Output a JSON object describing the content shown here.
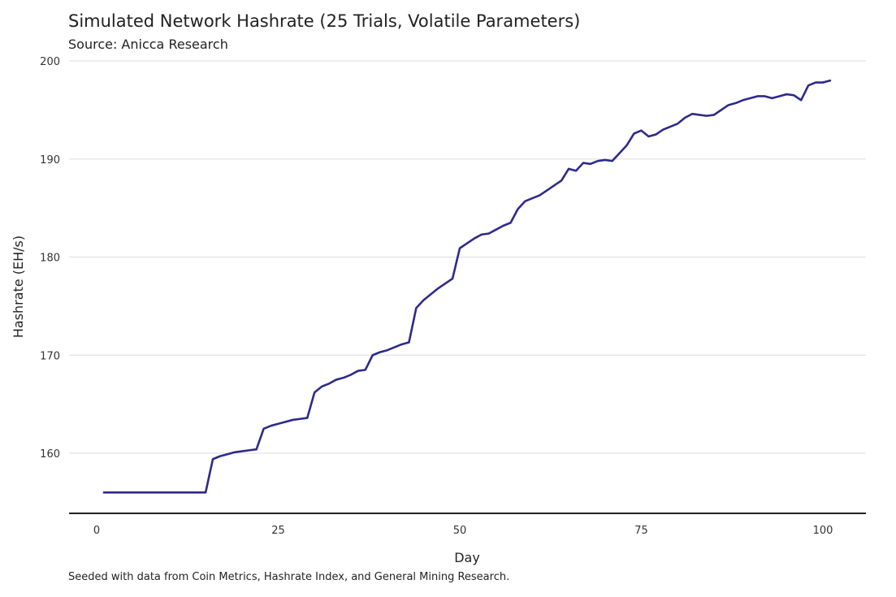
{
  "chart_data": {
    "type": "line",
    "title": "Simulated Network Hashrate (25 Trials, Volatile Parameters)",
    "subtitle": "Source: Anicca Research",
    "caption": "Seeded with data from Coin Metrics, Hashrate Index, and General Mining Research.",
    "xlabel": "Day",
    "ylabel": "Hashrate (EH/s)",
    "xlim": [
      1,
      101
    ],
    "ylim": [
      156,
      200
    ],
    "xticks": [
      0,
      25,
      50,
      75,
      100
    ],
    "yticks": [
      160,
      170,
      180,
      190,
      200
    ],
    "grid": "horizontal",
    "legend": "none",
    "line_color": "#2d2a8c",
    "series": [
      {
        "x": [
          1,
          5,
          10,
          15,
          16,
          17,
          18,
          19,
          20,
          21,
          22,
          23,
          24,
          25,
          26,
          27,
          28,
          29,
          30,
          31,
          32,
          33,
          34,
          35,
          36,
          37,
          38,
          39,
          40,
          41,
          42,
          43,
          44,
          45,
          46,
          47,
          48,
          49,
          50,
          51,
          52,
          53,
          54,
          55,
          56,
          57,
          58,
          59,
          60,
          61,
          62,
          63,
          64,
          65,
          66,
          67,
          68,
          69,
          70,
          71,
          72,
          73,
          74,
          75,
          76,
          77,
          78,
          79,
          80,
          81,
          82,
          83,
          84,
          85,
          86,
          87,
          88,
          89,
          90,
          91,
          92,
          93,
          94,
          95,
          96,
          97,
          98,
          99,
          100,
          101
        ],
        "y": [
          156.0,
          156.0,
          156.0,
          156.0,
          159.4,
          159.7,
          159.9,
          160.1,
          160.2,
          160.3,
          160.4,
          162.5,
          162.8,
          163.0,
          163.2,
          163.4,
          163.5,
          163.6,
          166.2,
          166.8,
          167.1,
          167.5,
          167.7,
          168.0,
          168.4,
          168.5,
          170.0,
          170.3,
          170.5,
          170.8,
          171.1,
          171.3,
          174.8,
          175.6,
          176.2,
          176.8,
          177.3,
          177.8,
          180.9,
          181.4,
          181.9,
          182.3,
          182.4,
          182.8,
          183.2,
          183.5,
          184.9,
          185.7,
          186.0,
          186.3,
          186.8,
          187.3,
          187.8,
          189.0,
          188.8,
          189.6,
          189.5,
          189.8,
          189.9,
          189.8,
          190.6,
          191.4,
          192.6,
          192.9,
          192.3,
          192.5,
          193.0,
          193.3,
          193.6,
          194.2,
          194.6,
          194.5,
          194.4,
          194.5,
          195.0,
          195.5,
          195.7,
          196.0,
          196.2,
          196.4,
          196.4,
          196.2,
          196.4,
          196.6,
          196.5,
          196.0,
          197.5,
          197.8,
          197.8,
          198.0
        ]
      }
    ]
  }
}
